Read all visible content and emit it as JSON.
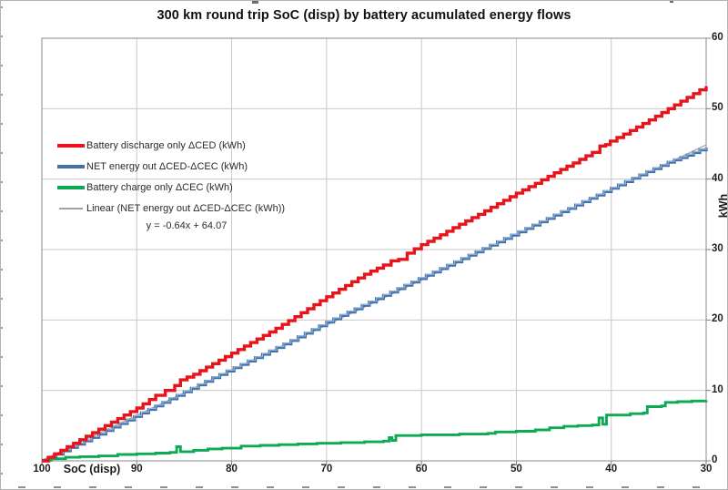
{
  "chart_data": {
    "type": "line",
    "title": "300 km round trip SoC (disp) by battery acumulated energy flows",
    "xlabel": "SoC (disp)",
    "ylabel": "kWh",
    "x_axis": {
      "min": 30,
      "max": 100,
      "reversed": true,
      "ticks": [
        100,
        90,
        80,
        70,
        60,
        50,
        40,
        30
      ]
    },
    "y_axis": {
      "min": 0,
      "max": 60,
      "side": "right",
      "ticks": [
        0,
        10,
        20,
        30,
        40,
        50,
        60
      ]
    },
    "grid": true,
    "colors": {
      "grid": "#c9c9c9",
      "border": "#9c9c9c",
      "tick": "#7f7f7f",
      "text": "#1f1f1f"
    },
    "equation": "y = -0.64x + 64.07",
    "trendline": {
      "label": "Linear (NET energy out ΔCED-ΔCEC (kWh))",
      "slope": -0.64,
      "intercept": 64.07,
      "color": "#a3a3a3"
    },
    "legend": {
      "position": "upper-left-inside",
      "items": [
        {
          "label": "Battery discharge only ΔCED (kWh)",
          "color": "#e8141c",
          "thin": false
        },
        {
          "label": "NET energy out ΔCED-ΔCEC (kWh)",
          "color": "#4470aa",
          "thin": false
        },
        {
          "label": "Battery charge only ΔCEC (kWh)",
          "color": "#0caa53",
          "thin": false
        },
        {
          "label": "Linear (NET energy out ΔCED-ΔCEC (kWh))",
          "color": "#a3a3a3",
          "thin": true
        }
      ]
    },
    "series": [
      {
        "id": "battery-discharge",
        "name": "Battery discharge only ΔCED (kWh)",
        "color": "#e8141c",
        "width": 3.4,
        "interpolation": "fine-steps",
        "points": [
          [
            100,
            0
          ],
          [
            98,
            1.5
          ],
          [
            96,
            3.0
          ],
          [
            94,
            4.5
          ],
          [
            92,
            6.0
          ],
          [
            90,
            7.5
          ],
          [
            88,
            9.3
          ],
          [
            87,
            10.0
          ],
          [
            86,
            10.7
          ],
          [
            85.4,
            11.5
          ],
          [
            84,
            12.3
          ],
          [
            82,
            13.8
          ],
          [
            80,
            15.3
          ],
          [
            78,
            16.8
          ],
          [
            76,
            18.3
          ],
          [
            74,
            19.9
          ],
          [
            72,
            21.6
          ],
          [
            70,
            23.3
          ],
          [
            68,
            24.9
          ],
          [
            66,
            26.5
          ],
          [
            64,
            27.8
          ],
          [
            63.2,
            28.4
          ],
          [
            62.4,
            28.6
          ],
          [
            61.5,
            29.5
          ],
          [
            60,
            30.7
          ],
          [
            58,
            32.1
          ],
          [
            56,
            33.6
          ],
          [
            54,
            35.0
          ],
          [
            52,
            36.5
          ],
          [
            50,
            38.0
          ],
          [
            48,
            39.4
          ],
          [
            46,
            40.9
          ],
          [
            44,
            42.3
          ],
          [
            42,
            43.8
          ],
          [
            41.2,
            44.7
          ],
          [
            40.6,
            44.9
          ],
          [
            40.1,
            45.4
          ],
          [
            38,
            46.9
          ],
          [
            36,
            48.4
          ],
          [
            34,
            50.0
          ],
          [
            32,
            51.6
          ],
          [
            30,
            53.2
          ]
        ]
      },
      {
        "id": "net-energy-out",
        "name": "NET energy out ΔCED-ΔCEC (kWh)",
        "color": "#4470aa",
        "highlight": "#93b5dc",
        "width": 3.2,
        "interpolation": "fine-steps",
        "points": [
          [
            100,
            0
          ],
          [
            97,
            1.9
          ],
          [
            94,
            3.8
          ],
          [
            91,
            5.8
          ],
          [
            88,
            7.8
          ],
          [
            85,
            9.8
          ],
          [
            82,
            11.8
          ],
          [
            79,
            13.7
          ],
          [
            76,
            15.6
          ],
          [
            73,
            17.6
          ],
          [
            70,
            19.7
          ],
          [
            67,
            21.6
          ],
          [
            64,
            23.5
          ],
          [
            61,
            25.4
          ],
          [
            58,
            27.3
          ],
          [
            55,
            29.2
          ],
          [
            52,
            31.1
          ],
          [
            49,
            33.0
          ],
          [
            46,
            34.9
          ],
          [
            43,
            36.8
          ],
          [
            40,
            38.7
          ],
          [
            37,
            40.6
          ],
          [
            34,
            42.4
          ],
          [
            32,
            43.4
          ],
          [
            30,
            44.5
          ]
        ]
      },
      {
        "id": "battery-charge",
        "name": "Battery charge only ΔCEC (kWh)",
        "color": "#0caa53",
        "width": 2.9,
        "interpolation": "steps",
        "points": [
          [
            100,
            0.1
          ],
          [
            99,
            0.3
          ],
          [
            97.5,
            0.5
          ],
          [
            96,
            0.6
          ],
          [
            94,
            0.7
          ],
          [
            92,
            0.9
          ],
          [
            90,
            1.0
          ],
          [
            88,
            1.1
          ],
          [
            86.5,
            1.2
          ],
          [
            85.8,
            2.0
          ],
          [
            85.4,
            1.3
          ],
          [
            84,
            1.5
          ],
          [
            82.5,
            1.7
          ],
          [
            81,
            1.8
          ],
          [
            79,
            2.1
          ],
          [
            77,
            2.2
          ],
          [
            75,
            2.3
          ],
          [
            73,
            2.4
          ],
          [
            71,
            2.5
          ],
          [
            68.5,
            2.6
          ],
          [
            66,
            2.7
          ],
          [
            64,
            2.8
          ],
          [
            63.4,
            3.3
          ],
          [
            63.1,
            2.9
          ],
          [
            62.7,
            3.6
          ],
          [
            60,
            3.7
          ],
          [
            56,
            3.8
          ],
          [
            53,
            3.9
          ],
          [
            52.2,
            4.1
          ],
          [
            50,
            4.2
          ],
          [
            48,
            4.4
          ],
          [
            46.5,
            4.7
          ],
          [
            45,
            4.9
          ],
          [
            43.5,
            5.0
          ],
          [
            42,
            5.1
          ],
          [
            41.3,
            6.1
          ],
          [
            40.9,
            5.2
          ],
          [
            40.5,
            6.5
          ],
          [
            38,
            6.7
          ],
          [
            36.6,
            6.8
          ],
          [
            36.2,
            7.7
          ],
          [
            34.7,
            7.8
          ],
          [
            34.3,
            8.3
          ],
          [
            33,
            8.4
          ],
          [
            31.5,
            8.5
          ],
          [
            30,
            8.6
          ]
        ]
      }
    ]
  }
}
